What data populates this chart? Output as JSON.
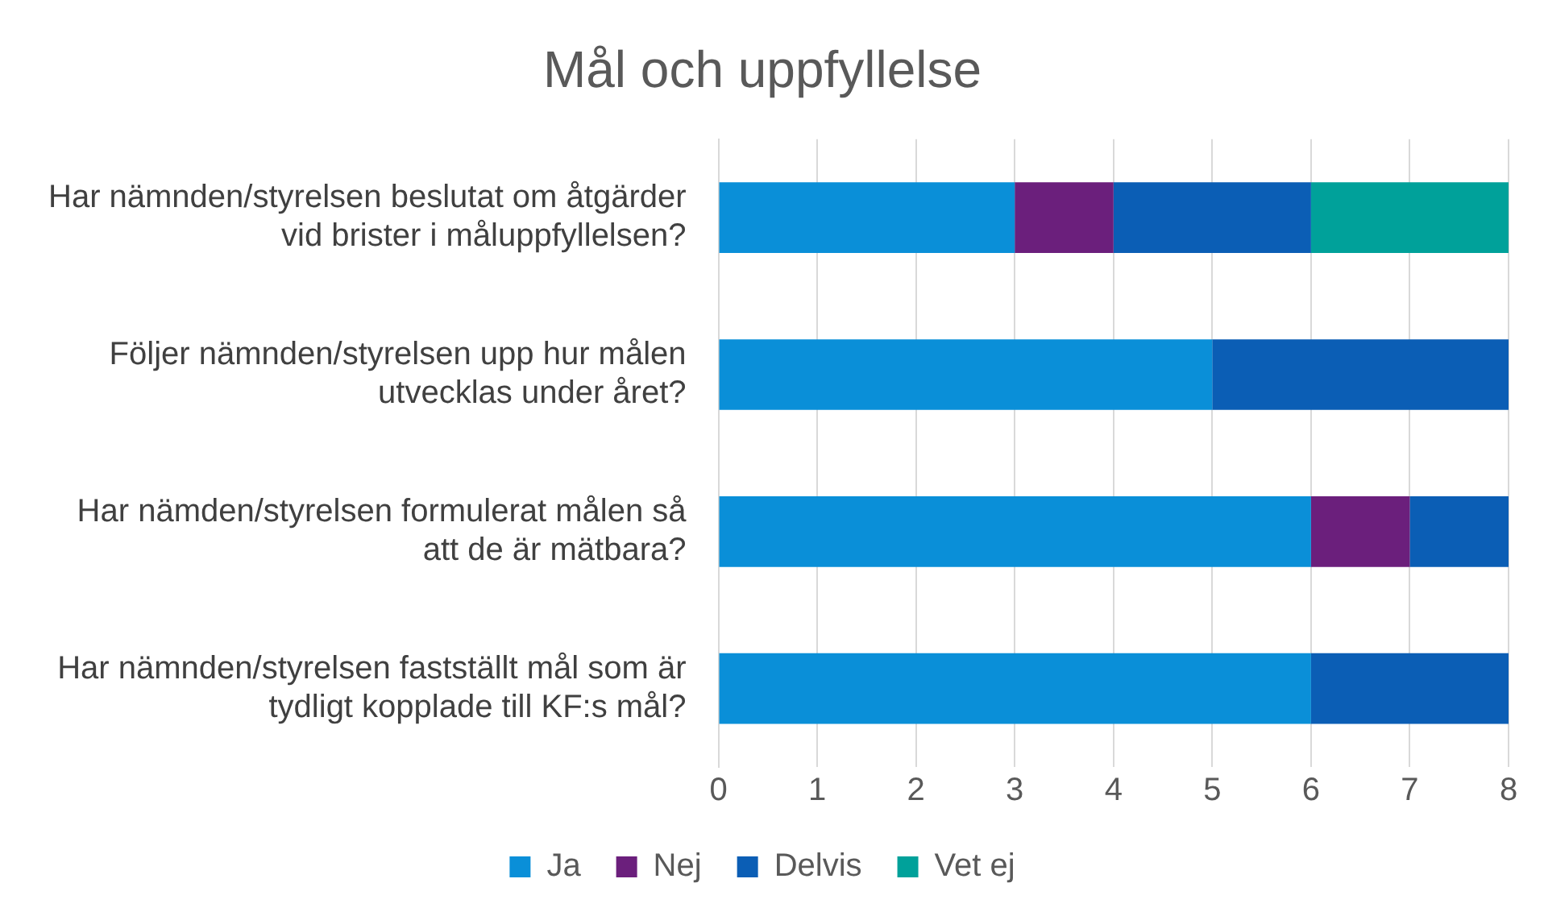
{
  "chart_data": {
    "type": "bar",
    "title": "Mål och uppfyllelse",
    "orientation": "horizontal",
    "stacked": true,
    "categories": [
      "Har nämnden/styrelsen beslutat om åtgärder vid brister i måluppfyllelsen?",
      "Följer nämnden/styrelsen upp hur målen utvecklas under året?",
      "Har nämden/styrelsen formulerat målen så att de är mätbara?",
      "Har nämnden/styrelsen fastställt mål som är tydligt kopplade till KF:s mål?"
    ],
    "series": [
      {
        "name": "Ja",
        "color": "#0a8fd8",
        "values": [
          3,
          5,
          6,
          6
        ]
      },
      {
        "name": "Nej",
        "color": "#6b1f7c",
        "values": [
          1,
          0,
          1,
          0
        ]
      },
      {
        "name": "Delvis",
        "color": "#0b5eb5",
        "values": [
          2,
          3,
          1,
          2
        ]
      },
      {
        "name": "Vet ej",
        "color": "#00a19a",
        "values": [
          2,
          0,
          0,
          0
        ]
      }
    ],
    "xlim": [
      0,
      8
    ],
    "xticks": [
      0,
      1,
      2,
      3,
      4,
      5,
      6,
      7,
      8
    ],
    "grid": "x",
    "legend": "bottom"
  }
}
